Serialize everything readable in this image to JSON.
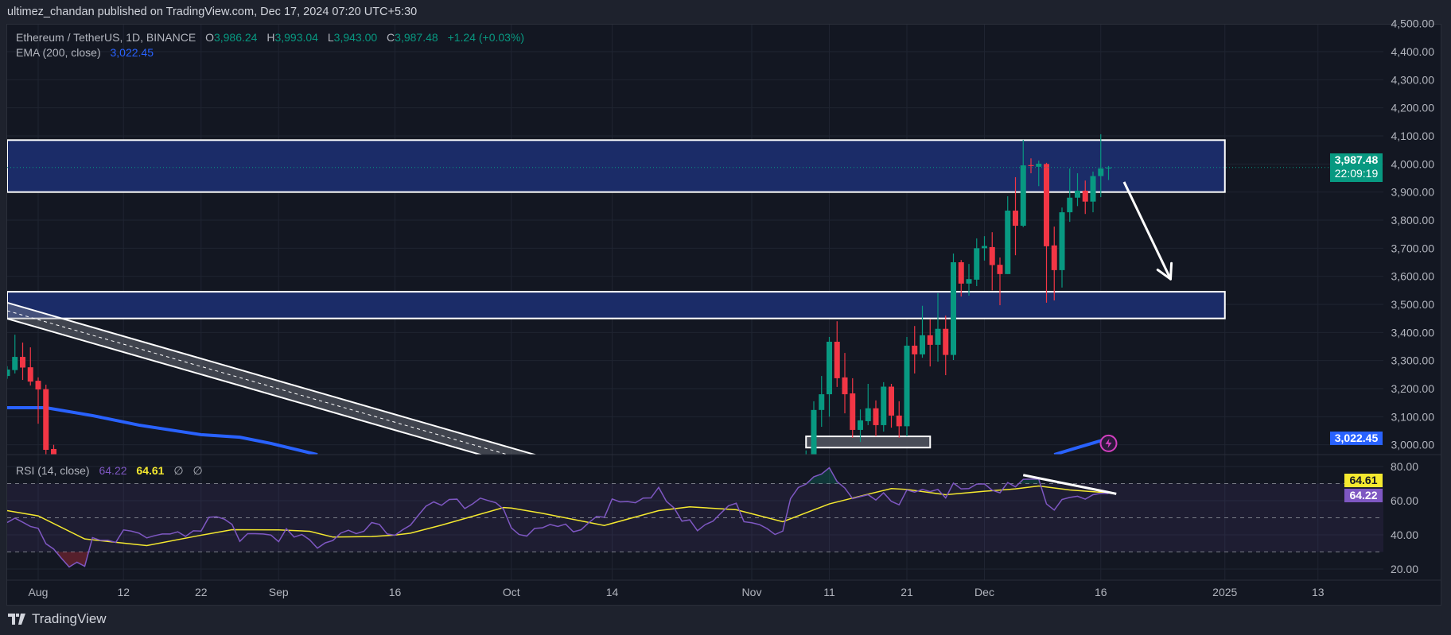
{
  "header": {
    "published": "ultimez_chandan published on TradingView.com, Dec 17, 2024 07:20 UTC+5:30"
  },
  "legend": {
    "symbol": "Ethereum / TetherUS, 1D, BINANCE",
    "o_label": "O",
    "o": "3,986.24",
    "h_label": "H",
    "h": "3,993.04",
    "l_label": "L",
    "l": "3,943.00",
    "c_label": "C",
    "c": "3,987.48",
    "change": "+1.24 (+0.03%)",
    "ema_label": "EMA (200, close)",
    "ema_value": "3,022.45"
  },
  "rsi_legend": {
    "label": "RSI (14, close)",
    "rsi": "64.22",
    "ma": "64.61",
    "na1": "∅",
    "na2": "∅"
  },
  "price_axis": {
    "ticks": [
      4500,
      4400,
      4300,
      4200,
      4100,
      4000,
      3900,
      3800,
      3700,
      3600,
      3500,
      3400,
      3300,
      3200,
      3100,
      3000
    ]
  },
  "rsi_axis": {
    "ticks": [
      80,
      60,
      40,
      20
    ]
  },
  "time_axis": [
    {
      "label": "Aug",
      "date": "2024-08-01"
    },
    {
      "label": "12",
      "date": "2024-08-12"
    },
    {
      "label": "22",
      "date": "2024-08-22"
    },
    {
      "label": "Sep",
      "date": "2024-09-01"
    },
    {
      "label": "16",
      "date": "2024-09-16"
    },
    {
      "label": "Oct",
      "date": "2024-10-01"
    },
    {
      "label": "14",
      "date": "2024-10-14"
    },
    {
      "label": "Nov",
      "date": "2024-11-01"
    },
    {
      "label": "11",
      "date": "2024-11-11"
    },
    {
      "label": "21",
      "date": "2024-11-21"
    },
    {
      "label": "Dec",
      "date": "2024-12-01"
    },
    {
      "label": "16",
      "date": "2024-12-16"
    },
    {
      "label": "2025",
      "date": "2025-01-01"
    },
    {
      "label": "13",
      "date": "2025-01-13"
    }
  ],
  "badges": {
    "last_price": "3,987.48",
    "countdown": "22:09:19",
    "ema": "3,022.45",
    "rsi_ma": "64.61",
    "rsi": "64.22"
  },
  "branding": {
    "name": "TradingView"
  },
  "colors": {
    "up": "#089981",
    "down": "#f23645",
    "ema": "#2962ff",
    "rsi": "#7e57c2",
    "rsi_ma": "#f5e92f",
    "zone_fill": "#1b2c68",
    "background": "#131722"
  },
  "chart_data": {
    "type": "candlestick",
    "symbol": "ETHUSDT",
    "interval": "1D",
    "price_range": [
      2965,
      4520
    ],
    "rsi_range": [
      12,
      87
    ],
    "rsi_levels": [
      70,
      50,
      30
    ],
    "last_price": 3987.48,
    "candles": [
      [
        "2024-07-28",
        3245,
        3280,
        3235,
        3268
      ],
      [
        "2024-07-29",
        3266,
        3392,
        3254,
        3313
      ],
      [
        "2024-07-30",
        3313,
        3364,
        3231,
        3275
      ],
      [
        "2024-07-31",
        3276,
        3347,
        3211,
        3225
      ],
      [
        "2024-08-01",
        3228,
        3240,
        3075,
        3197
      ],
      [
        "2024-08-02",
        3198,
        3214,
        2960,
        2982
      ],
      [
        "2024-08-03",
        2985,
        3000,
        2860,
        2905
      ],
      [
        "2024-11-08",
        2860,
        2980,
        2850,
        2920
      ],
      [
        "2024-11-09",
        2920,
        3155,
        2915,
        3124
      ],
      [
        "2024-11-10",
        3124,
        3245,
        3064,
        3180
      ],
      [
        "2024-11-11",
        3180,
        3384,
        3100,
        3367
      ],
      [
        "2024-11-12",
        3367,
        3440,
        3206,
        3237
      ],
      [
        "2024-11-13",
        3240,
        3327,
        3112,
        3180
      ],
      [
        "2024-11-14",
        3183,
        3237,
        3025,
        3053
      ],
      [
        "2024-11-15",
        3053,
        3126,
        3010,
        3087
      ],
      [
        "2024-11-16",
        3084,
        3217,
        3070,
        3130
      ],
      [
        "2024-11-17",
        3130,
        3158,
        3030,
        3070
      ],
      [
        "2024-11-18",
        3070,
        3223,
        3047,
        3207
      ],
      [
        "2024-11-19",
        3207,
        3217,
        3061,
        3104
      ],
      [
        "2024-11-20",
        3104,
        3155,
        3025,
        3066
      ],
      [
        "2024-11-21",
        3066,
        3384,
        3030,
        3353
      ],
      [
        "2024-11-22",
        3353,
        3423,
        3254,
        3322
      ],
      [
        "2024-11-23",
        3322,
        3495,
        3310,
        3390
      ],
      [
        "2024-11-24",
        3390,
        3447,
        3279,
        3356
      ],
      [
        "2024-11-25",
        3356,
        3540,
        3296,
        3413
      ],
      [
        "2024-11-26",
        3413,
        3460,
        3248,
        3320
      ],
      [
        "2024-11-27",
        3320,
        3681,
        3302,
        3650
      ],
      [
        "2024-11-28",
        3650,
        3658,
        3528,
        3574
      ],
      [
        "2024-11-29",
        3574,
        3644,
        3531,
        3590
      ],
      [
        "2024-11-30",
        3588,
        3735,
        3565,
        3700
      ],
      [
        "2024-12-01",
        3700,
        3743,
        3656,
        3708
      ],
      [
        "2024-12-02",
        3704,
        3757,
        3550,
        3640
      ],
      [
        "2024-12-03",
        3641,
        3667,
        3497,
        3608
      ],
      [
        "2024-12-04",
        3608,
        3885,
        3608,
        3834
      ],
      [
        "2024-12-05",
        3834,
        3953,
        3675,
        3780
      ],
      [
        "2024-12-06",
        3780,
        4086,
        3775,
        3995
      ],
      [
        "2024-12-07",
        3996,
        4020,
        3967,
        3995
      ],
      [
        "2024-12-08",
        3990,
        4012,
        3921,
        4001
      ],
      [
        "2024-12-09",
        4000,
        4004,
        3506,
        3707
      ],
      [
        "2024-12-10",
        3710,
        3777,
        3514,
        3622
      ],
      [
        "2024-12-11",
        3622,
        3845,
        3560,
        3828
      ],
      [
        "2024-12-12",
        3828,
        3984,
        3794,
        3880
      ],
      [
        "2024-12-13",
        3880,
        3967,
        3850,
        3905
      ],
      [
        "2024-12-14",
        3905,
        3941,
        3822,
        3866
      ],
      [
        "2024-12-15",
        3866,
        3973,
        3828,
        3957
      ],
      [
        "2024-12-16",
        3957,
        4106,
        3882,
        3984
      ],
      [
        "2024-12-17",
        3986.24,
        3993.04,
        3943.0,
        3987.48
      ]
    ],
    "ema_200": {
      "name": "EMA (200, close)",
      "segments": [
        [
          [
            "2024-07-28",
            3132
          ],
          [
            "2024-08-02",
            3132
          ],
          [
            "2024-08-08",
            3104
          ],
          [
            "2024-08-14",
            3070
          ],
          [
            "2024-08-22",
            3036
          ],
          [
            "2024-08-27",
            3027
          ],
          [
            "2024-08-31",
            3005
          ],
          [
            "2024-09-06",
            2965
          ]
        ],
        [
          [
            "2024-12-10",
            2965
          ],
          [
            "2024-12-13",
            2990
          ],
          [
            "2024-12-17",
            3022.45
          ]
        ]
      ]
    },
    "rsi": {
      "name": "RSI (14, close)",
      "start": "2024-07-28",
      "values": [
        47.2,
        49.8,
        47.4,
        44.9,
        43.8,
        34.8,
        31.7,
        26.3,
        21.2,
        24,
        21.6,
        38.4,
        36.8,
        36.8,
        35.6,
        42.9,
        42.2,
        41,
        38.2,
        39.5,
        40.5,
        40.5,
        41.8,
        39.1,
        42.4,
        42.2,
        50.3,
        50.6,
        49.2,
        46.1,
        36.2,
        40.7,
        40.7,
        40.5,
        39.9,
        36,
        43.6,
        38.7,
        40.2,
        37.1,
        32.2,
        35.3,
        36.7,
        41,
        42.7,
        40.7,
        42.1,
        47.2,
        46.1,
        40.5,
        39.8,
        43,
        45.7,
        51.4,
        56.8,
        59.3,
        57.3,
        60.7,
        60.9,
        55.4,
        58.1,
        61.5,
        60.1,
        58.8,
        55,
        44.1,
        40.2,
        39.3,
        43.8,
        44.1,
        46.1,
        44.9,
        46.3,
        41.8,
        43,
        47.2,
        50.8,
        50.3,
        61,
        59.3,
        59.5,
        58.8,
        61.5,
        61.6,
        67.8,
        59.6,
        55.7,
        48,
        48.8,
        42.4,
        46,
        48,
        52.6,
        57,
        58.5,
        47.7,
        47.1,
        46,
        43.6,
        40.2,
        42.2,
        61.2,
        67.7,
        69.7,
        74,
        75.6,
        79.3,
        71.2,
        67.4,
        61.2,
        62.4,
        63.5,
        60.4,
        64.6,
        59.6,
        57.6,
        66.3,
        65,
        66.6,
        65.3,
        66.6,
        61.6,
        70.3,
        66.9,
        67.1,
        69.7,
        69.8,
        66.1,
        64.6,
        70.6,
        68.1,
        72.5,
        72.6,
        72.6,
        58.1,
        54.5,
        60.7,
        61.9,
        62.6,
        60.9,
        63.5,
        64.3,
        64.22
      ]
    },
    "rsi_ma": {
      "points": [
        [
          "2024-07-28",
          54.2
        ],
        [
          "2024-08-01",
          51.1
        ],
        [
          "2024-08-07",
          37.6
        ],
        [
          "2024-08-15",
          33.7
        ],
        [
          "2024-08-22",
          39.8
        ],
        [
          "2024-08-26",
          43
        ],
        [
          "2024-09-01",
          42.9
        ],
        [
          "2024-09-05",
          42.1
        ],
        [
          "2024-09-08",
          38.7
        ],
        [
          "2024-09-13",
          39
        ],
        [
          "2024-09-16",
          39.9
        ],
        [
          "2024-09-18",
          41
        ],
        [
          "2024-09-22",
          45.7
        ],
        [
          "2024-09-30",
          56
        ],
        [
          "2024-10-01",
          55.7
        ],
        [
          "2024-10-05",
          52.6
        ],
        [
          "2024-10-13",
          45.5
        ],
        [
          "2024-10-20",
          54.2
        ],
        [
          "2024-10-24",
          56.4
        ],
        [
          "2024-10-30",
          54.7
        ],
        [
          "2024-11-05",
          47.7
        ],
        [
          "2024-11-11",
          58.1
        ],
        [
          "2024-11-16",
          63.8
        ],
        [
          "2024-11-19",
          67.1
        ],
        [
          "2024-11-21",
          66.6
        ],
        [
          "2024-11-26",
          63.5
        ],
        [
          "2024-12-01",
          65.5
        ],
        [
          "2024-12-05",
          66.9
        ],
        [
          "2024-12-08",
          68.6
        ],
        [
          "2024-12-12",
          66.3
        ],
        [
          "2024-12-17",
          64.61
        ]
      ]
    },
    "drawings": {
      "zones": [
        {
          "from": "2024-07-28",
          "to": "2025-01-01",
          "low": 3900,
          "high": 4085
        },
        {
          "from": "2024-07-28",
          "to": "2025-01-01",
          "low": 3450,
          "high": 3545
        },
        {
          "from": "2024-11-08",
          "to": "2024-11-24",
          "low": 2990,
          "high": 3030
        }
      ],
      "channel": {
        "upper": [
          [
            "2024-07-28",
            3506
          ],
          [
            "2024-10-04",
            2965
          ]
        ],
        "lower": [
          [
            "2024-07-28",
            3449
          ],
          [
            "2024-09-27",
            2965
          ]
        ]
      },
      "arrow": {
        "from": [
          "2024-12-19",
          3936
        ],
        "to": [
          "2024-12-25",
          3590
        ]
      },
      "rsi_trendline": {
        "from": [
          "2024-12-06",
          75
        ],
        "to": [
          "2024-12-18",
          64
        ]
      },
      "alert_icon": {
        "date": "2024-12-17",
        "price": 3005
      }
    }
  }
}
